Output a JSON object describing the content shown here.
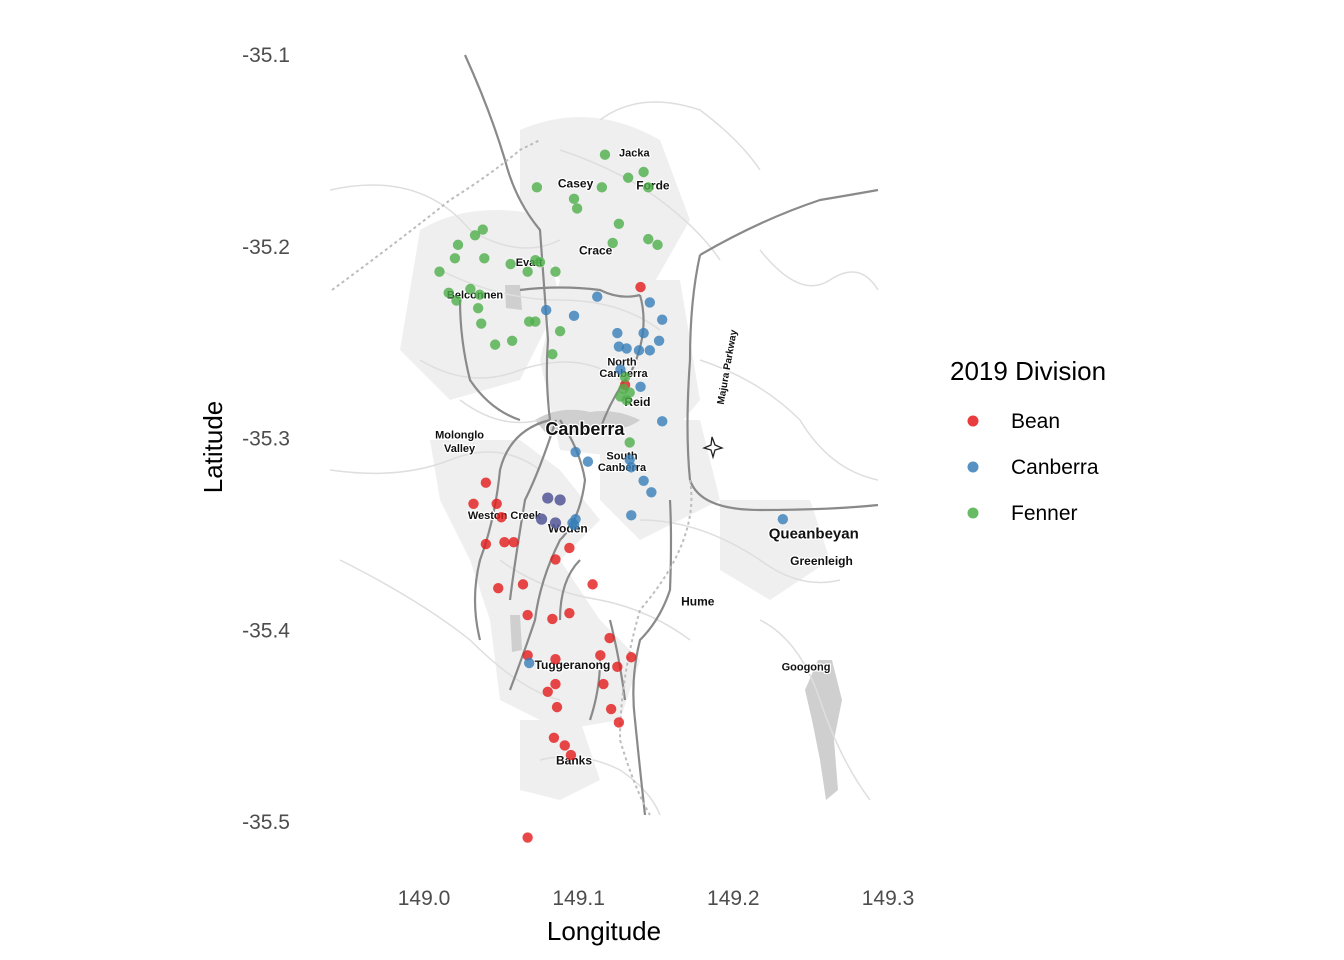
{
  "chart_data": {
    "type": "scatter",
    "xlabel": "Longitude",
    "ylabel": "Latitude",
    "xlim": [
      148.95,
      149.3
    ],
    "ylim": [
      -35.535,
      -35.1
    ],
    "x_ticks": [
      149.0,
      149.1,
      149.2,
      149.3
    ],
    "x_tick_labels": [
      "149.0",
      "149.1",
      "149.2",
      "149.3"
    ],
    "y_ticks": [
      -35.1,
      -35.2,
      -35.3,
      -35.4,
      -35.5
    ],
    "y_tick_labels": [
      "-35.1",
      "-35.2",
      "-35.3",
      "-35.4",
      "-35.5"
    ],
    "grid": false,
    "background": "basemap of Canberra (greyscale)",
    "legend": {
      "title": "2019 Division",
      "position": "right"
    },
    "series": [
      {
        "name": "Bean",
        "color": "#E41A1C",
        "points": [
          [
            149.14,
            -35.221
          ],
          [
            149.04,
            -35.323
          ],
          [
            149.032,
            -35.334
          ],
          [
            149.047,
            -35.334
          ],
          [
            149.05,
            -35.341
          ],
          [
            149.04,
            -35.355
          ],
          [
            149.052,
            -35.354
          ],
          [
            149.058,
            -35.354
          ],
          [
            149.094,
            -35.357
          ],
          [
            149.085,
            -35.363
          ],
          [
            149.064,
            -35.376
          ],
          [
            149.048,
            -35.378
          ],
          [
            149.109,
            -35.376
          ],
          [
            149.067,
            -35.392
          ],
          [
            149.083,
            -35.394
          ],
          [
            149.094,
            -35.391
          ],
          [
            149.12,
            -35.404
          ],
          [
            149.067,
            -35.413
          ],
          [
            149.085,
            -35.415
          ],
          [
            149.114,
            -35.413
          ],
          [
            149.134,
            -35.414
          ],
          [
            149.125,
            -35.419
          ],
          [
            149.085,
            -35.428
          ],
          [
            149.116,
            -35.428
          ],
          [
            149.08,
            -35.432
          ],
          [
            149.086,
            -35.44
          ],
          [
            149.121,
            -35.441
          ],
          [
            149.126,
            -35.448
          ],
          [
            149.084,
            -35.456
          ],
          [
            149.091,
            -35.46
          ],
          [
            149.095,
            -35.465
          ],
          [
            149.067,
            -35.508
          ],
          [
            149.13,
            -35.272
          ]
        ]
      },
      {
        "name": "Canberra",
        "color": "#377EB8",
        "points": [
          [
            149.079,
            -35.233
          ],
          [
            149.097,
            -35.236
          ],
          [
            149.112,
            -35.226
          ],
          [
            149.146,
            -35.229
          ],
          [
            149.154,
            -35.238
          ],
          [
            149.125,
            -35.245
          ],
          [
            149.142,
            -35.245
          ],
          [
            149.126,
            -35.252
          ],
          [
            149.131,
            -35.253
          ],
          [
            149.139,
            -35.254
          ],
          [
            149.146,
            -35.254
          ],
          [
            149.152,
            -35.249
          ],
          [
            149.127,
            -35.264
          ],
          [
            149.14,
            -35.273
          ],
          [
            149.154,
            -35.291
          ],
          [
            149.098,
            -35.307
          ],
          [
            149.106,
            -35.312
          ],
          [
            149.134,
            -35.315
          ],
          [
            149.142,
            -35.322
          ],
          [
            149.147,
            -35.328
          ],
          [
            149.134,
            -35.34
          ],
          [
            149.096,
            -35.344
          ],
          [
            149.098,
            -35.342
          ],
          [
            149.232,
            -35.342
          ],
          [
            149.068,
            -35.417
          ],
          [
            149.133,
            -35.311
          ],
          [
            149.097,
            -35.345
          ]
        ]
      },
      {
        "name": "Fenner",
        "color": "#4DAF4A",
        "points": [
          [
            149.117,
            -35.152
          ],
          [
            149.132,
            -35.164
          ],
          [
            149.142,
            -35.161
          ],
          [
            149.073,
            -35.169
          ],
          [
            149.115,
            -35.169
          ],
          [
            149.145,
            -35.169
          ],
          [
            149.097,
            -35.175
          ],
          [
            149.099,
            -35.18
          ],
          [
            149.126,
            -35.188
          ],
          [
            149.122,
            -35.198
          ],
          [
            149.038,
            -35.191
          ],
          [
            149.033,
            -35.194
          ],
          [
            149.022,
            -35.199
          ],
          [
            149.145,
            -35.196
          ],
          [
            149.151,
            -35.199
          ],
          [
            149.039,
            -35.206
          ],
          [
            149.02,
            -35.206
          ],
          [
            149.072,
            -35.207
          ],
          [
            149.056,
            -35.209
          ],
          [
            149.075,
            -35.208
          ],
          [
            149.067,
            -35.213
          ],
          [
            149.085,
            -35.213
          ],
          [
            149.01,
            -35.213
          ],
          [
            149.03,
            -35.222
          ],
          [
            149.016,
            -35.224
          ],
          [
            149.036,
            -35.225
          ],
          [
            149.021,
            -35.228
          ],
          [
            149.035,
            -35.232
          ],
          [
            149.037,
            -35.24
          ],
          [
            149.068,
            -35.239
          ],
          [
            149.072,
            -35.239
          ],
          [
            149.088,
            -35.244
          ],
          [
            149.046,
            -35.251
          ],
          [
            149.057,
            -35.249
          ],
          [
            149.083,
            -35.256
          ],
          [
            149.13,
            -35.268
          ],
          [
            149.129,
            -35.274
          ],
          [
            149.127,
            -35.278
          ],
          [
            149.131,
            -35.28
          ],
          [
            149.133,
            -35.276
          ],
          [
            149.133,
            -35.302
          ]
        ]
      }
    ],
    "overlap_color": "#5A5E9A",
    "overlap_points": [
      [
        149.08,
        -35.331
      ],
      [
        149.088,
        -35.332
      ],
      [
        149.076,
        -35.342
      ],
      [
        149.085,
        -35.344
      ]
    ]
  },
  "map_labels": [
    {
      "text": "Jacka",
      "lon": 149.136,
      "lat": -35.153,
      "size": 11
    },
    {
      "text": "Casey",
      "lon": 149.098,
      "lat": -35.169,
      "size": 12
    },
    {
      "text": "Forde",
      "lon": 149.148,
      "lat": -35.17,
      "size": 12
    },
    {
      "text": "Crace",
      "lon": 149.111,
      "lat": -35.204,
      "size": 12
    },
    {
      "text": "Evatt",
      "lon": 149.068,
      "lat": -35.21,
      "size": 11
    },
    {
      "text": "Belconnen",
      "lon": 149.033,
      "lat": -35.227,
      "size": 11
    },
    {
      "text": "North",
      "lon": 149.128,
      "lat": -35.262,
      "size": 11
    },
    {
      "text": "Canberra",
      "lon": 149.129,
      "lat": -35.268,
      "size": 11
    },
    {
      "text": "Reid",
      "lon": 149.138,
      "lat": -35.283,
      "size": 12
    },
    {
      "text": "Canberra",
      "lon": 149.104,
      "lat": -35.298,
      "size": 18
    },
    {
      "text": "Molonglo",
      "lon": 149.023,
      "lat": -35.3,
      "size": 11
    },
    {
      "text": "Valley",
      "lon": 149.023,
      "lat": -35.307,
      "size": 11
    },
    {
      "text": "South",
      "lon": 149.128,
      "lat": -35.311,
      "size": 11
    },
    {
      "text": "Canberra",
      "lon": 149.128,
      "lat": -35.317,
      "size": 11
    },
    {
      "text": "Weston Creek",
      "lon": 149.052,
      "lat": -35.342,
      "size": 11
    },
    {
      "text": "Woden",
      "lon": 149.093,
      "lat": -35.349,
      "size": 12
    },
    {
      "text": "Queanbeyan",
      "lon": 149.252,
      "lat": -35.352,
      "size": 15
    },
    {
      "text": "Greenleigh",
      "lon": 149.257,
      "lat": -35.366,
      "size": 12
    },
    {
      "text": "Hume",
      "lon": 149.177,
      "lat": -35.387,
      "size": 12
    },
    {
      "text": "Tuggeranong",
      "lon": 149.096,
      "lat": -35.42,
      "size": 12
    },
    {
      "text": "Googong",
      "lon": 149.247,
      "lat": -35.421,
      "size": 11
    },
    {
      "text": "Banks",
      "lon": 149.097,
      "lat": -35.47,
      "size": 12
    },
    {
      "text": "Majura Parkway",
      "lon": 149.198,
      "lat": -35.263,
      "size": 10,
      "rotate": -80
    }
  ]
}
